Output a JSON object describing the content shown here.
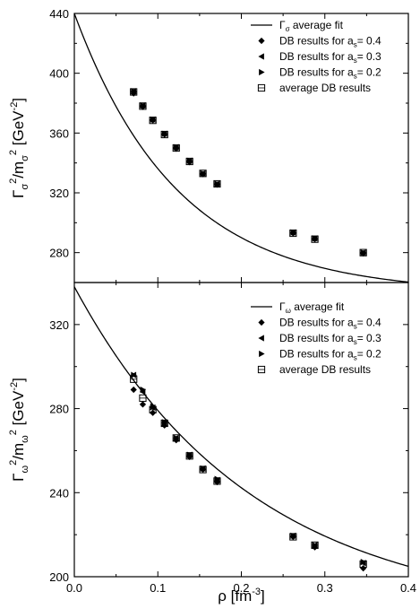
{
  "chart_data": [
    {
      "type": "scatter",
      "ylabel": {
        "base": "Γ",
        "sub1": "σ",
        "sup1": "2",
        "mid": "/m",
        "sub2": "σ",
        "sup2": "2",
        "tail": " [GeV",
        "sup3": "-2",
        "close": "]"
      },
      "xlim": [
        0.0,
        0.4
      ],
      "ylim": [
        260,
        440
      ],
      "yticks": [
        280,
        320,
        360,
        400,
        440
      ],
      "grid": false,
      "legend_position": "top-right",
      "legend": [
        {
          "kind": "line",
          "base": "Γ",
          "sub": "σ",
          "text": " average fit"
        },
        {
          "kind": "diamond",
          "prefix": "DB results for a",
          "sub": "s",
          "suffix": "= 0.4"
        },
        {
          "kind": "tri-left",
          "prefix": "DB results for a",
          "sub": "s",
          "suffix": "= 0.3"
        },
        {
          "kind": "tri-right",
          "prefix": "DB results for a",
          "sub": "s",
          "suffix": "= 0.2"
        },
        {
          "kind": "square",
          "text": "average DB results"
        }
      ],
      "fit_curve": {
        "a": 253,
        "b": 187,
        "c": 8.1
      },
      "x": [
        0.071,
        0.082,
        0.094,
        0.108,
        0.122,
        0.138,
        0.154,
        0.171,
        0.262,
        0.288,
        0.346
      ],
      "series": [
        {
          "marker": "diamond",
          "values": [
            386.5,
            377.5,
            368.5,
            359,
            349.5,
            340.5,
            332.5,
            325.5,
            293,
            289,
            279.5
          ]
        },
        {
          "marker": "tri-left",
          "values": [
            388,
            378.5,
            369,
            359.5,
            350.5,
            341.5,
            333,
            326,
            293.5,
            289.5,
            280
          ]
        },
        {
          "marker": "tri-right",
          "values": [
            388,
            378.5,
            369,
            359.5,
            350.5,
            341.5,
            333,
            326,
            293.5,
            289.5,
            280
          ]
        },
        {
          "marker": "square",
          "values": [
            387.5,
            378,
            368.5,
            359,
            350,
            341,
            333,
            326,
            293,
            289,
            280
          ]
        }
      ]
    },
    {
      "type": "scatter",
      "xlabel": {
        "text": "ρ [fm",
        "sup": "-3",
        "close": "]"
      },
      "ylabel": {
        "base": "Γ",
        "sub1": "ω",
        "sup1": "2",
        "mid": "/m",
        "sub2": "ω",
        "sup2": "2",
        "tail": " [GeV",
        "sup3": "-2",
        "close": "]"
      },
      "xlim": [
        0.0,
        0.4
      ],
      "ylim": [
        200,
        340
      ],
      "xticks": [
        0.0,
        0.1,
        0.2,
        0.3,
        0.4
      ],
      "xtick_labels": [
        "0.0",
        "0.1",
        "0.2",
        "0.3",
        "0.4"
      ],
      "yticks": [
        200,
        240,
        280,
        320
      ],
      "grid": false,
      "legend_position": "top-right",
      "legend": [
        {
          "kind": "line",
          "base": "Γ",
          "sub": "ω",
          "text": " average fit"
        },
        {
          "kind": "diamond",
          "prefix": "DB results for a",
          "sub": "s",
          "suffix": "= 0.4"
        },
        {
          "kind": "tri-left",
          "prefix": "DB results for a",
          "sub": "s",
          "suffix": "= 0.3"
        },
        {
          "kind": "tri-right",
          "prefix": "DB results for a",
          "sub": "s",
          "suffix": "= 0.2"
        },
        {
          "kind": "square",
          "text": "average DB results"
        }
      ],
      "fit_curve": {
        "a": 181,
        "b": 157,
        "c": 4.7
      },
      "x": [
        0.071,
        0.082,
        0.094,
        0.108,
        0.122,
        0.138,
        0.154,
        0.171,
        0.262,
        0.288,
        0.346
      ],
      "series": [
        {
          "marker": "diamond",
          "values": [
            289,
            282,
            278,
            272,
            265,
            257,
            251,
            245,
            219,
            214,
            204
          ]
        },
        {
          "marker": "tri-left",
          "values": [
            296,
            288,
            280.5,
            273.5,
            266,
            258,
            251.5,
            246,
            219.5,
            215,
            206.5
          ]
        },
        {
          "marker": "tri-right",
          "values": [
            296,
            289,
            281,
            273.5,
            266,
            258,
            251.5,
            246.5,
            219.5,
            215,
            207
          ]
        },
        {
          "marker": "square",
          "values": [
            294,
            285,
            279.5,
            273,
            266,
            257.5,
            251,
            245.5,
            219,
            215,
            206
          ]
        }
      ]
    }
  ]
}
